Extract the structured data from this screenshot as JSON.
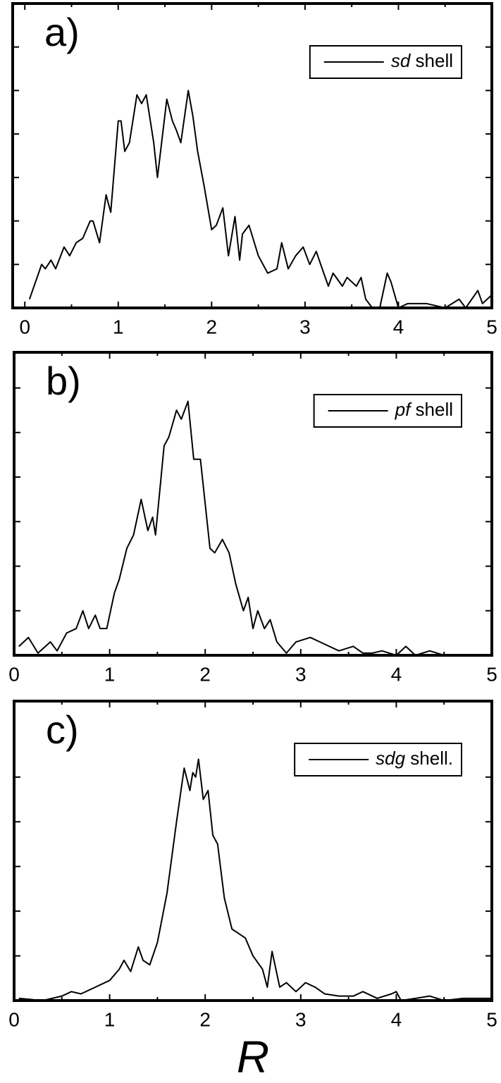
{
  "chart_data": [
    {
      "type": "line",
      "title": "a)",
      "legend": "upper right",
      "xlim": [
        -0.13,
        5
      ],
      "xticks": [
        0,
        1,
        2,
        3,
        4,
        5
      ],
      "xminorticks": [
        0.5,
        1.5,
        2.5,
        3.5,
        4.5
      ],
      "ylim": [
        0,
        7
      ],
      "yticks": [
        1,
        2,
        3,
        4,
        5,
        6
      ],
      "x": [
        0.05,
        0.18,
        0.22,
        0.28,
        0.33,
        0.42,
        0.48,
        0.55,
        0.62,
        0.7,
        0.73,
        0.8,
        0.87,
        0.92,
        1.0,
        1.03,
        1.07,
        1.12,
        1.2,
        1.25,
        1.3,
        1.38,
        1.42,
        1.52,
        1.58,
        1.62,
        1.67,
        1.75,
        1.8,
        1.85,
        1.92,
        2.0,
        2.05,
        2.12,
        2.18,
        2.25,
        2.3,
        2.33,
        2.4,
        2.5,
        2.6,
        2.7,
        2.75,
        2.82,
        2.9,
        2.98,
        3.05,
        3.12,
        3.2,
        3.25,
        3.3,
        3.4,
        3.45,
        3.55,
        3.6,
        3.65,
        3.72,
        3.8,
        3.88,
        3.92,
        4.0,
        4.1,
        4.3,
        4.5,
        4.65,
        4.72,
        4.85,
        4.9,
        5.0
      ],
      "series": [
        {
          "name": "sd shell",
          "color": "#000000",
          "values": [
            0.2,
            1.0,
            0.9,
            1.1,
            0.9,
            1.4,
            1.2,
            1.5,
            1.6,
            2.0,
            2.0,
            1.5,
            2.6,
            2.2,
            4.3,
            4.3,
            3.6,
            3.8,
            4.9,
            4.7,
            4.9,
            3.8,
            3.0,
            4.8,
            4.3,
            4.1,
            3.8,
            5.0,
            4.4,
            3.6,
            2.8,
            1.8,
            1.9,
            2.3,
            1.2,
            2.1,
            1.1,
            1.7,
            1.9,
            1.2,
            0.8,
            0.9,
            1.5,
            0.9,
            1.2,
            1.4,
            1.0,
            1.3,
            0.8,
            0.5,
            0.8,
            0.5,
            0.7,
            0.5,
            0.7,
            0.2,
            0.0,
            0.0,
            0.8,
            0.6,
            0.0,
            0.1,
            0.1,
            0.0,
            0.2,
            0.0,
            0.4,
            0.1,
            0.3
          ]
        }
      ]
    },
    {
      "type": "line",
      "title": "b)",
      "legend": "upper right",
      "xlim": [
        0,
        5
      ],
      "xticks": [
        0,
        1,
        2,
        3,
        4,
        5
      ],
      "xminorticks": [
        0.5,
        1.5,
        2.5,
        3.5,
        4.5
      ],
      "ylim": [
        0,
        6.8
      ],
      "yticks": [
        1,
        2,
        3,
        4,
        5,
        6
      ],
      "x": [
        0.05,
        0.15,
        0.25,
        0.38,
        0.45,
        0.55,
        0.65,
        0.72,
        0.78,
        0.85,
        0.9,
        0.97,
        1.05,
        1.1,
        1.18,
        1.25,
        1.33,
        1.4,
        1.45,
        1.48,
        1.57,
        1.62,
        1.7,
        1.75,
        1.82,
        1.88,
        1.95,
        2.05,
        2.1,
        2.18,
        2.25,
        2.32,
        2.4,
        2.45,
        2.5,
        2.55,
        2.62,
        2.68,
        2.75,
        2.85,
        2.95,
        3.1,
        3.2,
        3.3,
        3.4,
        3.55,
        3.65,
        3.75,
        3.85,
        4.0,
        4.1,
        4.2,
        4.35,
        4.5,
        4.7
      ],
      "series": [
        {
          "name": "pf shell",
          "color": "#000000",
          "values": [
            0.2,
            0.4,
            0.05,
            0.3,
            0.1,
            0.5,
            0.6,
            1.0,
            0.6,
            0.9,
            0.6,
            0.6,
            1.4,
            1.7,
            2.4,
            2.7,
            3.5,
            2.8,
            3.1,
            2.7,
            4.7,
            4.9,
            5.5,
            5.3,
            5.7,
            4.4,
            4.4,
            2.4,
            2.3,
            2.6,
            2.3,
            1.6,
            1.0,
            1.3,
            0.6,
            1.0,
            0.6,
            0.8,
            0.3,
            0.05,
            0.3,
            0.4,
            0.3,
            0.2,
            0.1,
            0.2,
            0.05,
            0.05,
            0.1,
            0.0,
            0.2,
            0.0,
            0.1,
            0.0,
            0.0
          ]
        }
      ]
    },
    {
      "type": "line",
      "title": "c)",
      "legend": "upper right",
      "xlabel": "R",
      "xlim": [
        0,
        5
      ],
      "xticks": [
        0,
        1,
        2,
        3,
        4,
        5
      ],
      "xminorticks": [
        0.5,
        1.5,
        2.5,
        3.5,
        4.5
      ],
      "ylim": [
        0,
        6.7
      ],
      "yticks": [
        1,
        2,
        3,
        4,
        5
      ],
      "x": [
        0.05,
        0.3,
        0.5,
        0.6,
        0.7,
        0.85,
        1.0,
        1.1,
        1.15,
        1.22,
        1.3,
        1.35,
        1.42,
        1.5,
        1.6,
        1.7,
        1.78,
        1.84,
        1.87,
        1.9,
        1.93,
        1.98,
        2.03,
        2.08,
        2.13,
        2.2,
        2.28,
        2.35,
        2.42,
        2.5,
        2.6,
        2.65,
        2.7,
        2.78,
        2.85,
        2.95,
        3.05,
        3.15,
        3.25,
        3.4,
        3.55,
        3.65,
        3.8,
        3.95,
        4.0,
        4.05,
        4.2,
        4.35,
        4.5,
        4.7,
        5.0
      ],
      "series": [
        {
          "name": "sdg shell.",
          "color": "#000000",
          "values": [
            0.05,
            0.0,
            0.1,
            0.2,
            0.15,
            0.3,
            0.45,
            0.7,
            0.9,
            0.65,
            1.2,
            0.9,
            0.8,
            1.3,
            2.4,
            4.0,
            5.2,
            4.7,
            5.1,
            5.0,
            5.4,
            4.5,
            4.7,
            3.7,
            3.5,
            2.3,
            1.6,
            1.5,
            1.4,
            1.0,
            0.7,
            0.3,
            1.1,
            0.3,
            0.4,
            0.2,
            0.4,
            0.3,
            0.15,
            0.1,
            0.1,
            0.2,
            0.05,
            0.15,
            0.2,
            0.0,
            0.05,
            0.1,
            0.0,
            0.05,
            0.05
          ]
        }
      ]
    }
  ]
}
